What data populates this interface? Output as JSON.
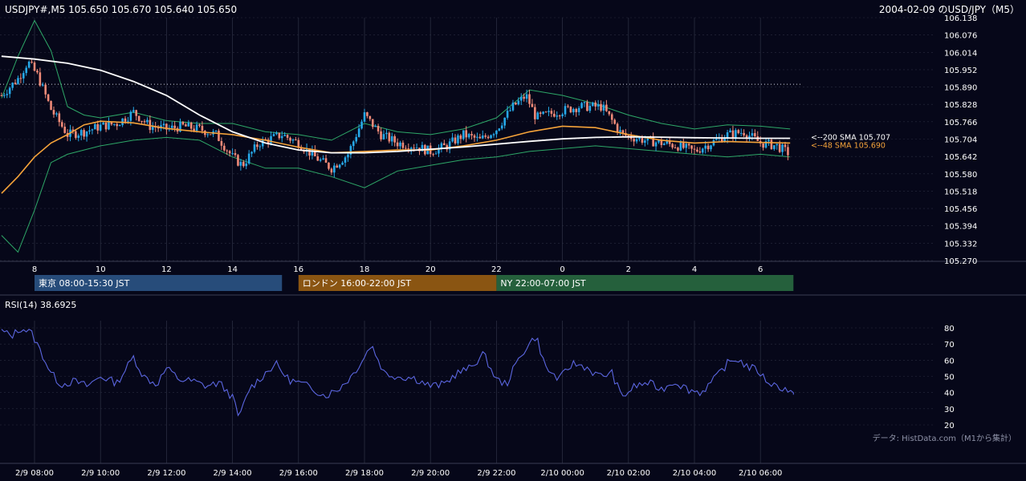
{
  "header": {
    "symbol_ohlc": "USDJPY#,M5 105.650 105.670 105.640 105.650",
    "title_right": "2004-02-09 のUSD/JPY（M5）"
  },
  "chart_data": {
    "type": "candlestick",
    "price_axis": {
      "ylim": [
        105.27,
        106.138
      ],
      "ticks": [
        "106.138",
        "106.076",
        "106.014",
        "105.952",
        "105.890",
        "105.828",
        "105.766",
        "105.704",
        "105.642",
        "105.580",
        "105.518",
        "105.456",
        "105.394",
        "105.332",
        "105.270"
      ]
    },
    "time_axis_top": [
      "8",
      "10",
      "12",
      "14",
      "16",
      "18",
      "20",
      "22",
      "0",
      "2",
      "4",
      "6"
    ],
    "time_axis_bottom": [
      "2/9 08:00",
      "2/9 10:00",
      "2/9 12:00",
      "2/9 14:00",
      "2/9 16:00",
      "2/9 18:00",
      "2/9 20:00",
      "2/9 22:00",
      "2/10 00:00",
      "2/10 02:00",
      "2/10 04:00",
      "2/10 06:00"
    ],
    "xlim_hours": [
      7.0,
      31.2
    ],
    "dotted_level": 105.9,
    "ma_labels": [
      {
        "text": "<--200 SMA 105.707",
        "value": 105.707,
        "color": "#ffffff"
      },
      {
        "text": "<--48 SMA 105.690",
        "value": 105.69,
        "color": "#f5a33a"
      }
    ],
    "sma200": [
      [
        7.0,
        106.0
      ],
      [
        8,
        105.99
      ],
      [
        9,
        105.975
      ],
      [
        10,
        105.95
      ],
      [
        11,
        105.91
      ],
      [
        12,
        105.86
      ],
      [
        13,
        105.79
      ],
      [
        14,
        105.73
      ],
      [
        15,
        105.69
      ],
      [
        16,
        105.665
      ],
      [
        17,
        105.655
      ],
      [
        18,
        105.655
      ],
      [
        19,
        105.66
      ],
      [
        20,
        105.668
      ],
      [
        21,
        105.676
      ],
      [
        22,
        105.686
      ],
      [
        23,
        105.696
      ],
      [
        24,
        105.705
      ],
      [
        25,
        105.71
      ],
      [
        26,
        105.712
      ],
      [
        27,
        105.711
      ],
      [
        28,
        105.709
      ],
      [
        29,
        105.708
      ],
      [
        30,
        105.707
      ],
      [
        30.9,
        105.707
      ]
    ],
    "sma48": [
      [
        7.0,
        105.51
      ],
      [
        7.5,
        105.57
      ],
      [
        8,
        105.64
      ],
      [
        8.5,
        105.69
      ],
      [
        9,
        105.72
      ],
      [
        9.5,
        105.755
      ],
      [
        10,
        105.768
      ],
      [
        11,
        105.762
      ],
      [
        12,
        105.742
      ],
      [
        13,
        105.73
      ],
      [
        14,
        105.72
      ],
      [
        15,
        105.7
      ],
      [
        16,
        105.675
      ],
      [
        17,
        105.655
      ],
      [
        18,
        105.66
      ],
      [
        19,
        105.665
      ],
      [
        20,
        105.665
      ],
      [
        21,
        105.68
      ],
      [
        22,
        105.7
      ],
      [
        23,
        105.73
      ],
      [
        24,
        105.75
      ],
      [
        25,
        105.745
      ],
      [
        26,
        105.72
      ],
      [
        27,
        105.7
      ],
      [
        28,
        105.69
      ],
      [
        29,
        105.695
      ],
      [
        30,
        105.692
      ],
      [
        30.9,
        105.69
      ]
    ],
    "bb_upper": [
      [
        7.0,
        105.85
      ],
      [
        7.5,
        106.0
      ],
      [
        8,
        106.128
      ],
      [
        8.5,
        106.02
      ],
      [
        9,
        105.82
      ],
      [
        9.5,
        105.79
      ],
      [
        10,
        105.78
      ],
      [
        11,
        105.8
      ],
      [
        12,
        105.77
      ],
      [
        13,
        105.76
      ],
      [
        14,
        105.76
      ],
      [
        15,
        105.73
      ],
      [
        16,
        105.72
      ],
      [
        17,
        105.7
      ],
      [
        18,
        105.76
      ],
      [
        19,
        105.73
      ],
      [
        20,
        105.72
      ],
      [
        21,
        105.74
      ],
      [
        22,
        105.78
      ],
      [
        23,
        105.88
      ],
      [
        24,
        105.86
      ],
      [
        25,
        105.83
      ],
      [
        26,
        105.79
      ],
      [
        27,
        105.76
      ],
      [
        28,
        105.74
      ],
      [
        29,
        105.755
      ],
      [
        30,
        105.75
      ],
      [
        30.9,
        105.74
      ]
    ],
    "bb_lower": [
      [
        7.0,
        105.36
      ],
      [
        7.5,
        105.3
      ],
      [
        8,
        105.45
      ],
      [
        8.5,
        105.62
      ],
      [
        9,
        105.65
      ],
      [
        10,
        105.68
      ],
      [
        11,
        105.7
      ],
      [
        12,
        105.71
      ],
      [
        13,
        105.7
      ],
      [
        14,
        105.64
      ],
      [
        15,
        105.6
      ],
      [
        16,
        105.6
      ],
      [
        17,
        105.57
      ],
      [
        18,
        105.53
      ],
      [
        19,
        105.59
      ],
      [
        20,
        105.61
      ],
      [
        21,
        105.63
      ],
      [
        22,
        105.64
      ],
      [
        23,
        105.66
      ],
      [
        24,
        105.67
      ],
      [
        25,
        105.68
      ],
      [
        26,
        105.67
      ],
      [
        27,
        105.66
      ],
      [
        28,
        105.65
      ],
      [
        29,
        105.64
      ],
      [
        30,
        105.65
      ],
      [
        30.9,
        105.64
      ]
    ],
    "price_path": [
      [
        7.0,
        105.86
      ],
      [
        7.5,
        105.92
      ],
      [
        7.8,
        105.98
      ],
      [
        8.1,
        105.93
      ],
      [
        8.5,
        105.81
      ],
      [
        9,
        105.72
      ],
      [
        9.5,
        105.73
      ],
      [
        10,
        105.75
      ],
      [
        10.5,
        105.76
      ],
      [
        11,
        105.8
      ],
      [
        11.5,
        105.75
      ],
      [
        12,
        105.74
      ],
      [
        12.5,
        105.75
      ],
      [
        13,
        105.74
      ],
      [
        13.5,
        105.72
      ],
      [
        14,
        105.64
      ],
      [
        14.3,
        105.61
      ],
      [
        14.8,
        105.69
      ],
      [
        15.5,
        105.72
      ],
      [
        16,
        105.69
      ],
      [
        16.5,
        105.64
      ],
      [
        17,
        105.6
      ],
      [
        17.5,
        105.65
      ],
      [
        18,
        105.79
      ],
      [
        18.5,
        105.72
      ],
      [
        19,
        105.69
      ],
      [
        19.5,
        105.68
      ],
      [
        20,
        105.66
      ],
      [
        20.5,
        105.68
      ],
      [
        21,
        105.72
      ],
      [
        21.5,
        105.7
      ],
      [
        22,
        105.74
      ],
      [
        22.5,
        105.82
      ],
      [
        22.9,
        105.86
      ],
      [
        23.2,
        105.78
      ],
      [
        23.8,
        105.8
      ],
      [
        24.5,
        105.82
      ],
      [
        25.2,
        105.82
      ],
      [
        25.8,
        105.72
      ],
      [
        26.5,
        105.7
      ],
      [
        27,
        105.69
      ],
      [
        27.5,
        105.68
      ],
      [
        28,
        105.66
      ],
      [
        28.5,
        105.69
      ],
      [
        29,
        105.72
      ],
      [
        29.5,
        105.73
      ],
      [
        30,
        105.69
      ],
      [
        30.5,
        105.68
      ],
      [
        30.9,
        105.65
      ]
    ],
    "rsi": {
      "label": "RSI(14) 38.6925",
      "ticks": [
        "80",
        "70",
        "60",
        "50",
        "40",
        "30",
        "20"
      ],
      "ylim": [
        20,
        85
      ],
      "values": [
        [
          7.0,
          78
        ],
        [
          7.3,
          75
        ],
        [
          7.6,
          80
        ],
        [
          7.9,
          77
        ],
        [
          8.2,
          65
        ],
        [
          8.5,
          52
        ],
        [
          8.8,
          45
        ],
        [
          9.2,
          47
        ],
        [
          9.6,
          44
        ],
        [
          10,
          50
        ],
        [
          10.5,
          46
        ],
        [
          11,
          62
        ],
        [
          11.3,
          50
        ],
        [
          11.7,
          45
        ],
        [
          12,
          55
        ],
        [
          12.4,
          48
        ],
        [
          12.8,
          47
        ],
        [
          13.2,
          44
        ],
        [
          13.6,
          46
        ],
        [
          14,
          37
        ],
        [
          14.2,
          24
        ],
        [
          14.5,
          42
        ],
        [
          14.9,
          50
        ],
        [
          15.3,
          58
        ],
        [
          15.7,
          48
        ],
        [
          16,
          46
        ],
        [
          16.4,
          43
        ],
        [
          16.8,
          38
        ],
        [
          17.2,
          42
        ],
        [
          17.6,
          50
        ],
        [
          18,
          62
        ],
        [
          18.2,
          70
        ],
        [
          18.6,
          52
        ],
        [
          19,
          50
        ],
        [
          19.5,
          49
        ],
        [
          20,
          44
        ],
        [
          20.4,
          45
        ],
        [
          20.8,
          52
        ],
        [
          21.2,
          55
        ],
        [
          21.6,
          64
        ],
        [
          22,
          48
        ],
        [
          22.3,
          45
        ],
        [
          22.6,
          58
        ],
        [
          22.9,
          68
        ],
        [
          23.2,
          75
        ],
        [
          23.5,
          55
        ],
        [
          23.9,
          48
        ],
        [
          24.3,
          58
        ],
        [
          24.7,
          56
        ],
        [
          25.1,
          50
        ],
        [
          25.5,
          52
        ],
        [
          25.8,
          37
        ],
        [
          26.2,
          44
        ],
        [
          26.6,
          46
        ],
        [
          27,
          42
        ],
        [
          27.4,
          47
        ],
        [
          27.8,
          42
        ],
        [
          28.2,
          40
        ],
        [
          28.6,
          48
        ],
        [
          29,
          58
        ],
        [
          29.3,
          61
        ],
        [
          29.6,
          56
        ],
        [
          29.9,
          54
        ],
        [
          30.2,
          47
        ],
        [
          30.5,
          44
        ],
        [
          30.8,
          42
        ],
        [
          31.0,
          38.7
        ]
      ]
    }
  },
  "sessions": [
    {
      "label": "東京 08:00-15:30 JST",
      "start": 8.0,
      "end": 15.5,
      "color": "#274c7a"
    },
    {
      "label": "ロンドン 16:00-22:00 JST",
      "start": 16.0,
      "end": 22.0,
      "color": "#8a5512"
    },
    {
      "label": "NY 22:00-07:00 JST",
      "start": 22.0,
      "end": 31.0,
      "color": "#25603c"
    }
  ],
  "footer": {
    "source": "データ: HistData.com（M1から集計）"
  },
  "colors": {
    "background": "#060719",
    "grid": "#2a2d40",
    "bull": "#26a8e8",
    "bear": "#f08a78",
    "sma200": "#ffffff",
    "sma48": "#f5a33a",
    "bollinger": "#2ea868",
    "rsi": "#5b66e0"
  }
}
